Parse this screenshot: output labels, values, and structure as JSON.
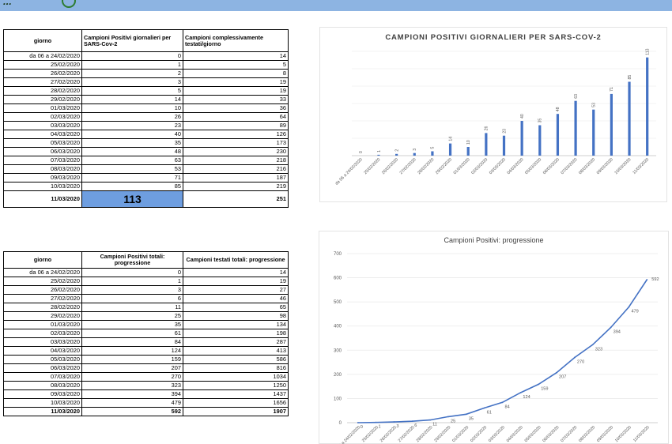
{
  "header": {
    "logo_text": "...",
    "accent": "#8db4e2"
  },
  "table1": {
    "headers": [
      "giorno",
      "Campioni Positivi giornalieri per SARS-Cov-2",
      "Campioni complessivamente testati/giorno"
    ],
    "rows": [
      [
        "da 06 a 24/02/2020",
        "0",
        "14"
      ],
      [
        "25/02/2020",
        "1",
        "5"
      ],
      [
        "26/02/2020",
        "2",
        "8"
      ],
      [
        "27/02/2020",
        "3",
        "19"
      ],
      [
        "28/02/2020",
        "5",
        "19"
      ],
      [
        "29/02/2020",
        "14",
        "33"
      ],
      [
        "01/03/2020",
        "10",
        "36"
      ],
      [
        "02/03/2020",
        "26",
        "64"
      ],
      [
        "03/03/2020",
        "23",
        "89"
      ],
      [
        "04/03/2020",
        "40",
        "126"
      ],
      [
        "05/03/2020",
        "35",
        "173"
      ],
      [
        "06/03/2020",
        "48",
        "230"
      ],
      [
        "07/03/2020",
        "63",
        "218"
      ],
      [
        "08/03/2020",
        "53",
        "216"
      ],
      [
        "09/03/2020",
        "71",
        "187"
      ],
      [
        "10/03/2020",
        "85",
        "219"
      ]
    ],
    "last_row": [
      "11/03/2020",
      "113",
      "251"
    ],
    "highlight_color": "#6e9ee0"
  },
  "table2": {
    "headers": [
      "giorno",
      "Campioni Positivi totali: progressione",
      "Campioni testati totali: progressione"
    ],
    "rows": [
      [
        "da 06 a 24/02/2020",
        "0",
        "14"
      ],
      [
        "25/02/2020",
        "1",
        "19"
      ],
      [
        "26/02/2020",
        "3",
        "27"
      ],
      [
        "27/02/2020",
        "6",
        "46"
      ],
      [
        "28/02/2020",
        "11",
        "65"
      ],
      [
        "29/02/2020",
        "25",
        "98"
      ],
      [
        "01/03/2020",
        "35",
        "134"
      ],
      [
        "02/03/2020",
        "61",
        "198"
      ],
      [
        "03/03/2020",
        "84",
        "287"
      ],
      [
        "04/03/2020",
        "124",
        "413"
      ],
      [
        "05/03/2020",
        "159",
        "586"
      ],
      [
        "06/03/2020",
        "207",
        "816"
      ],
      [
        "07/03/2020",
        "270",
        "1034"
      ],
      [
        "08/03/2020",
        "323",
        "1250"
      ],
      [
        "09/03/2020",
        "394",
        "1437"
      ],
      [
        "10/03/2020",
        "479",
        "1656"
      ]
    ],
    "last_row": [
      "11/03/2020",
      "592",
      "1907"
    ]
  },
  "chart_data": [
    {
      "type": "bar",
      "title": "CAMPIONI POSITIVI GIORNALIERI PER SARS-COV-2",
      "categories": [
        "da 06 a 24/02/2020",
        "25/02/2020",
        "26/02/2020",
        "27/02/2020",
        "28/02/2020",
        "29/02/2020",
        "01/03/2020",
        "02/03/2020",
        "03/03/2020",
        "04/03/2020",
        "05/03/2020",
        "06/03/2020",
        "07/03/2020",
        "08/03/2020",
        "09/03/2020",
        "10/03/2020",
        "11/03/2020"
      ],
      "values": [
        0,
        1,
        2,
        3,
        5,
        14,
        10,
        26,
        23,
        40,
        35,
        48,
        63,
        53,
        71,
        85,
        113
      ],
      "ylim": [
        0,
        120
      ],
      "color": "#4472c4",
      "data_labels": true,
      "grid": true
    },
    {
      "type": "line",
      "title": "Campioni Positivi: progressione",
      "categories": [
        "da 06 a 24/02/2020",
        "25/02/2020",
        "26/02/2020",
        "27/02/2020",
        "28/02/2020",
        "29/02/2020",
        "01/03/2020",
        "02/03/2020",
        "03/03/2020",
        "04/03/2020",
        "05/03/2020",
        "06/03/2020",
        "07/03/2020",
        "08/03/2020",
        "09/03/2020",
        "10/03/2020",
        "11/03/2020"
      ],
      "values": [
        0,
        1,
        3,
        6,
        11,
        25,
        35,
        61,
        84,
        124,
        159,
        207,
        270,
        323,
        394,
        479,
        592
      ],
      "ylim": [
        0,
        700
      ],
      "yticks": [
        0,
        100,
        200,
        300,
        400,
        500,
        600,
        700
      ],
      "color": "#4472c4",
      "data_labels": true,
      "grid": true
    }
  ]
}
